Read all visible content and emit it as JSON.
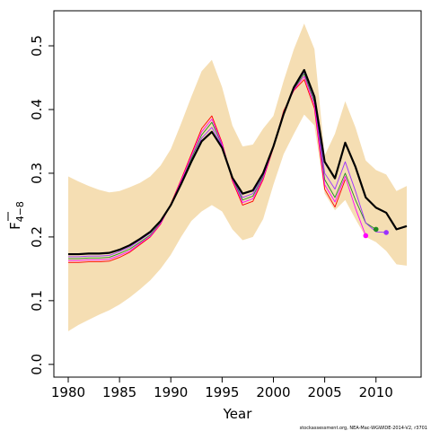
{
  "chart_data": {
    "type": "line",
    "xlabel": "Year",
    "ylabel": {
      "main": "F",
      "subscript": "4−8",
      "overline": true
    },
    "xlim": [
      1978.6,
      2014.4
    ],
    "ylim": [
      -0.02,
      0.555
    ],
    "x_ticks": [
      1980,
      1985,
      1990,
      1995,
      2000,
      2005,
      2010
    ],
    "y_ticks": [
      0.0,
      0.1,
      0.2,
      0.3,
      0.4,
      0.5
    ],
    "y_tick_labels": [
      "0.0",
      "0.1",
      "0.2",
      "0.3",
      "0.4",
      "0.5"
    ],
    "band_color": "#f5deb3",
    "confidence_band": {
      "x": [
        1980,
        1981,
        1982,
        1983,
        1984,
        1985,
        1986,
        1987,
        1988,
        1989,
        1990,
        1991,
        1992,
        1993,
        1994,
        1995,
        1996,
        1997,
        1998,
        1999,
        2000,
        2001,
        2002,
        2003,
        2004,
        2005,
        2006,
        2007,
        2008,
        2009,
        2010,
        2011,
        2012,
        2013
      ],
      "lower": [
        0.052,
        0.062,
        0.07,
        0.078,
        0.085,
        0.094,
        0.105,
        0.118,
        0.132,
        0.15,
        0.172,
        0.2,
        0.225,
        0.24,
        0.25,
        0.24,
        0.212,
        0.195,
        0.2,
        0.228,
        0.282,
        0.33,
        0.362,
        0.392,
        0.375,
        0.268,
        0.242,
        0.258,
        0.228,
        0.2,
        0.192,
        0.178,
        0.157,
        0.155
      ],
      "upper": [
        0.295,
        0.287,
        0.28,
        0.274,
        0.27,
        0.272,
        0.278,
        0.285,
        0.295,
        0.312,
        0.338,
        0.378,
        0.42,
        0.46,
        0.478,
        0.435,
        0.375,
        0.342,
        0.345,
        0.37,
        0.39,
        0.445,
        0.495,
        0.535,
        0.495,
        0.328,
        0.362,
        0.413,
        0.372,
        0.32,
        0.305,
        0.298,
        0.272,
        0.28
      ]
    },
    "series": [
      {
        "color": "#000000",
        "width": 2.2,
        "x": [
          1980,
          1981,
          1982,
          1983,
          1984,
          1985,
          1986,
          1987,
          1988,
          1989,
          1990,
          1991,
          1992,
          1993,
          1994,
          1995,
          1996,
          1997,
          1998,
          1999,
          2000,
          2001,
          2002,
          2003,
          2004,
          2005,
          2006,
          2007,
          2008,
          2009,
          2010,
          2011,
          2012,
          2013
        ],
        "y": [
          0.173,
          0.173,
          0.174,
          0.174,
          0.175,
          0.18,
          0.187,
          0.197,
          0.208,
          0.225,
          0.25,
          0.283,
          0.318,
          0.35,
          0.365,
          0.34,
          0.293,
          0.268,
          0.273,
          0.3,
          0.342,
          0.393,
          0.435,
          0.462,
          0.42,
          0.318,
          0.292,
          0.348,
          0.31,
          0.262,
          0.246,
          0.238,
          0.212,
          0.217
        ]
      },
      {
        "color": "#ff0000",
        "width": 0.9,
        "x": [
          1980,
          1981,
          1982,
          1983,
          1984,
          1985,
          1986,
          1987,
          1988,
          1989,
          1990,
          1991,
          1992,
          1993,
          1994,
          1995,
          1996,
          1997,
          1998,
          1999,
          2000,
          2001,
          2002,
          2003,
          2004,
          2005,
          2006,
          2007
        ],
        "y": [
          0.16,
          0.16,
          0.161,
          0.161,
          0.162,
          0.168,
          0.176,
          0.188,
          0.2,
          0.22,
          0.252,
          0.29,
          0.33,
          0.37,
          0.39,
          0.348,
          0.288,
          0.25,
          0.256,
          0.29,
          0.34,
          0.398,
          0.43,
          0.447,
          0.402,
          0.275,
          0.247,
          0.29
        ]
      },
      {
        "color": "#228b22",
        "width": 0.9,
        "x": [
          1980,
          1981,
          1982,
          1983,
          1984,
          1985,
          1986,
          1987,
          1988,
          1989,
          1990,
          1991,
          1992,
          1993,
          1994,
          1995,
          1996,
          1997,
          1998,
          1999,
          2000,
          2001,
          2002,
          2003,
          2004,
          2005,
          2006,
          2007,
          2008,
          2009,
          2010
        ],
        "y": [
          0.166,
          0.166,
          0.167,
          0.167,
          0.168,
          0.174,
          0.181,
          0.192,
          0.203,
          0.222,
          0.25,
          0.285,
          0.323,
          0.36,
          0.38,
          0.345,
          0.292,
          0.258,
          0.264,
          0.295,
          0.342,
          0.395,
          0.432,
          0.456,
          0.412,
          0.29,
          0.262,
          0.3,
          0.258,
          0.222,
          0.212
        ]
      },
      {
        "color": "#9b30ff",
        "width": 0.9,
        "x": [
          1980,
          1981,
          1982,
          1983,
          1984,
          1985,
          1986,
          1987,
          1988,
          1989,
          1990,
          1991,
          1992,
          1993,
          1994,
          1995,
          1996,
          1997,
          1998,
          1999,
          2000,
          2001,
          2002,
          2003,
          2004,
          2005,
          2006,
          2007,
          2008,
          2009,
          2010,
          2011
        ],
        "y": [
          0.169,
          0.169,
          0.17,
          0.17,
          0.171,
          0.177,
          0.184,
          0.195,
          0.206,
          0.224,
          0.251,
          0.284,
          0.32,
          0.355,
          0.372,
          0.343,
          0.294,
          0.262,
          0.268,
          0.298,
          0.343,
          0.394,
          0.434,
          0.459,
          0.416,
          0.3,
          0.275,
          0.318,
          0.272,
          0.222,
          0.208,
          0.207
        ]
      },
      {
        "color": "#ff00ff",
        "width": 0.9,
        "x": [
          1980,
          1981,
          1982,
          1983,
          1984,
          1985,
          1986,
          1987,
          1988,
          1989,
          1990,
          1991,
          1992,
          1993,
          1994,
          1995,
          1996,
          1997,
          1998,
          1999,
          2000,
          2001,
          2002,
          2003,
          2004,
          2005,
          2006,
          2007,
          2008,
          2009
        ],
        "y": [
          0.163,
          0.163,
          0.164,
          0.164,
          0.165,
          0.171,
          0.178,
          0.19,
          0.201,
          0.221,
          0.251,
          0.288,
          0.327,
          0.365,
          0.385,
          0.346,
          0.29,
          0.254,
          0.26,
          0.292,
          0.341,
          0.396,
          0.431,
          0.452,
          0.407,
          0.282,
          0.255,
          0.295,
          0.245,
          0.202
        ]
      }
    ],
    "end_points": [
      {
        "x": 2009,
        "y": 0.202,
        "color": "#ff00ff"
      },
      {
        "x": 2010,
        "y": 0.212,
        "color": "#228b22"
      },
      {
        "x": 2011,
        "y": 0.207,
        "color": "#9b30ff"
      }
    ]
  },
  "footer": "stockassessment.org, NEA-Mac-WGWIDE-2014-V2, r3701"
}
